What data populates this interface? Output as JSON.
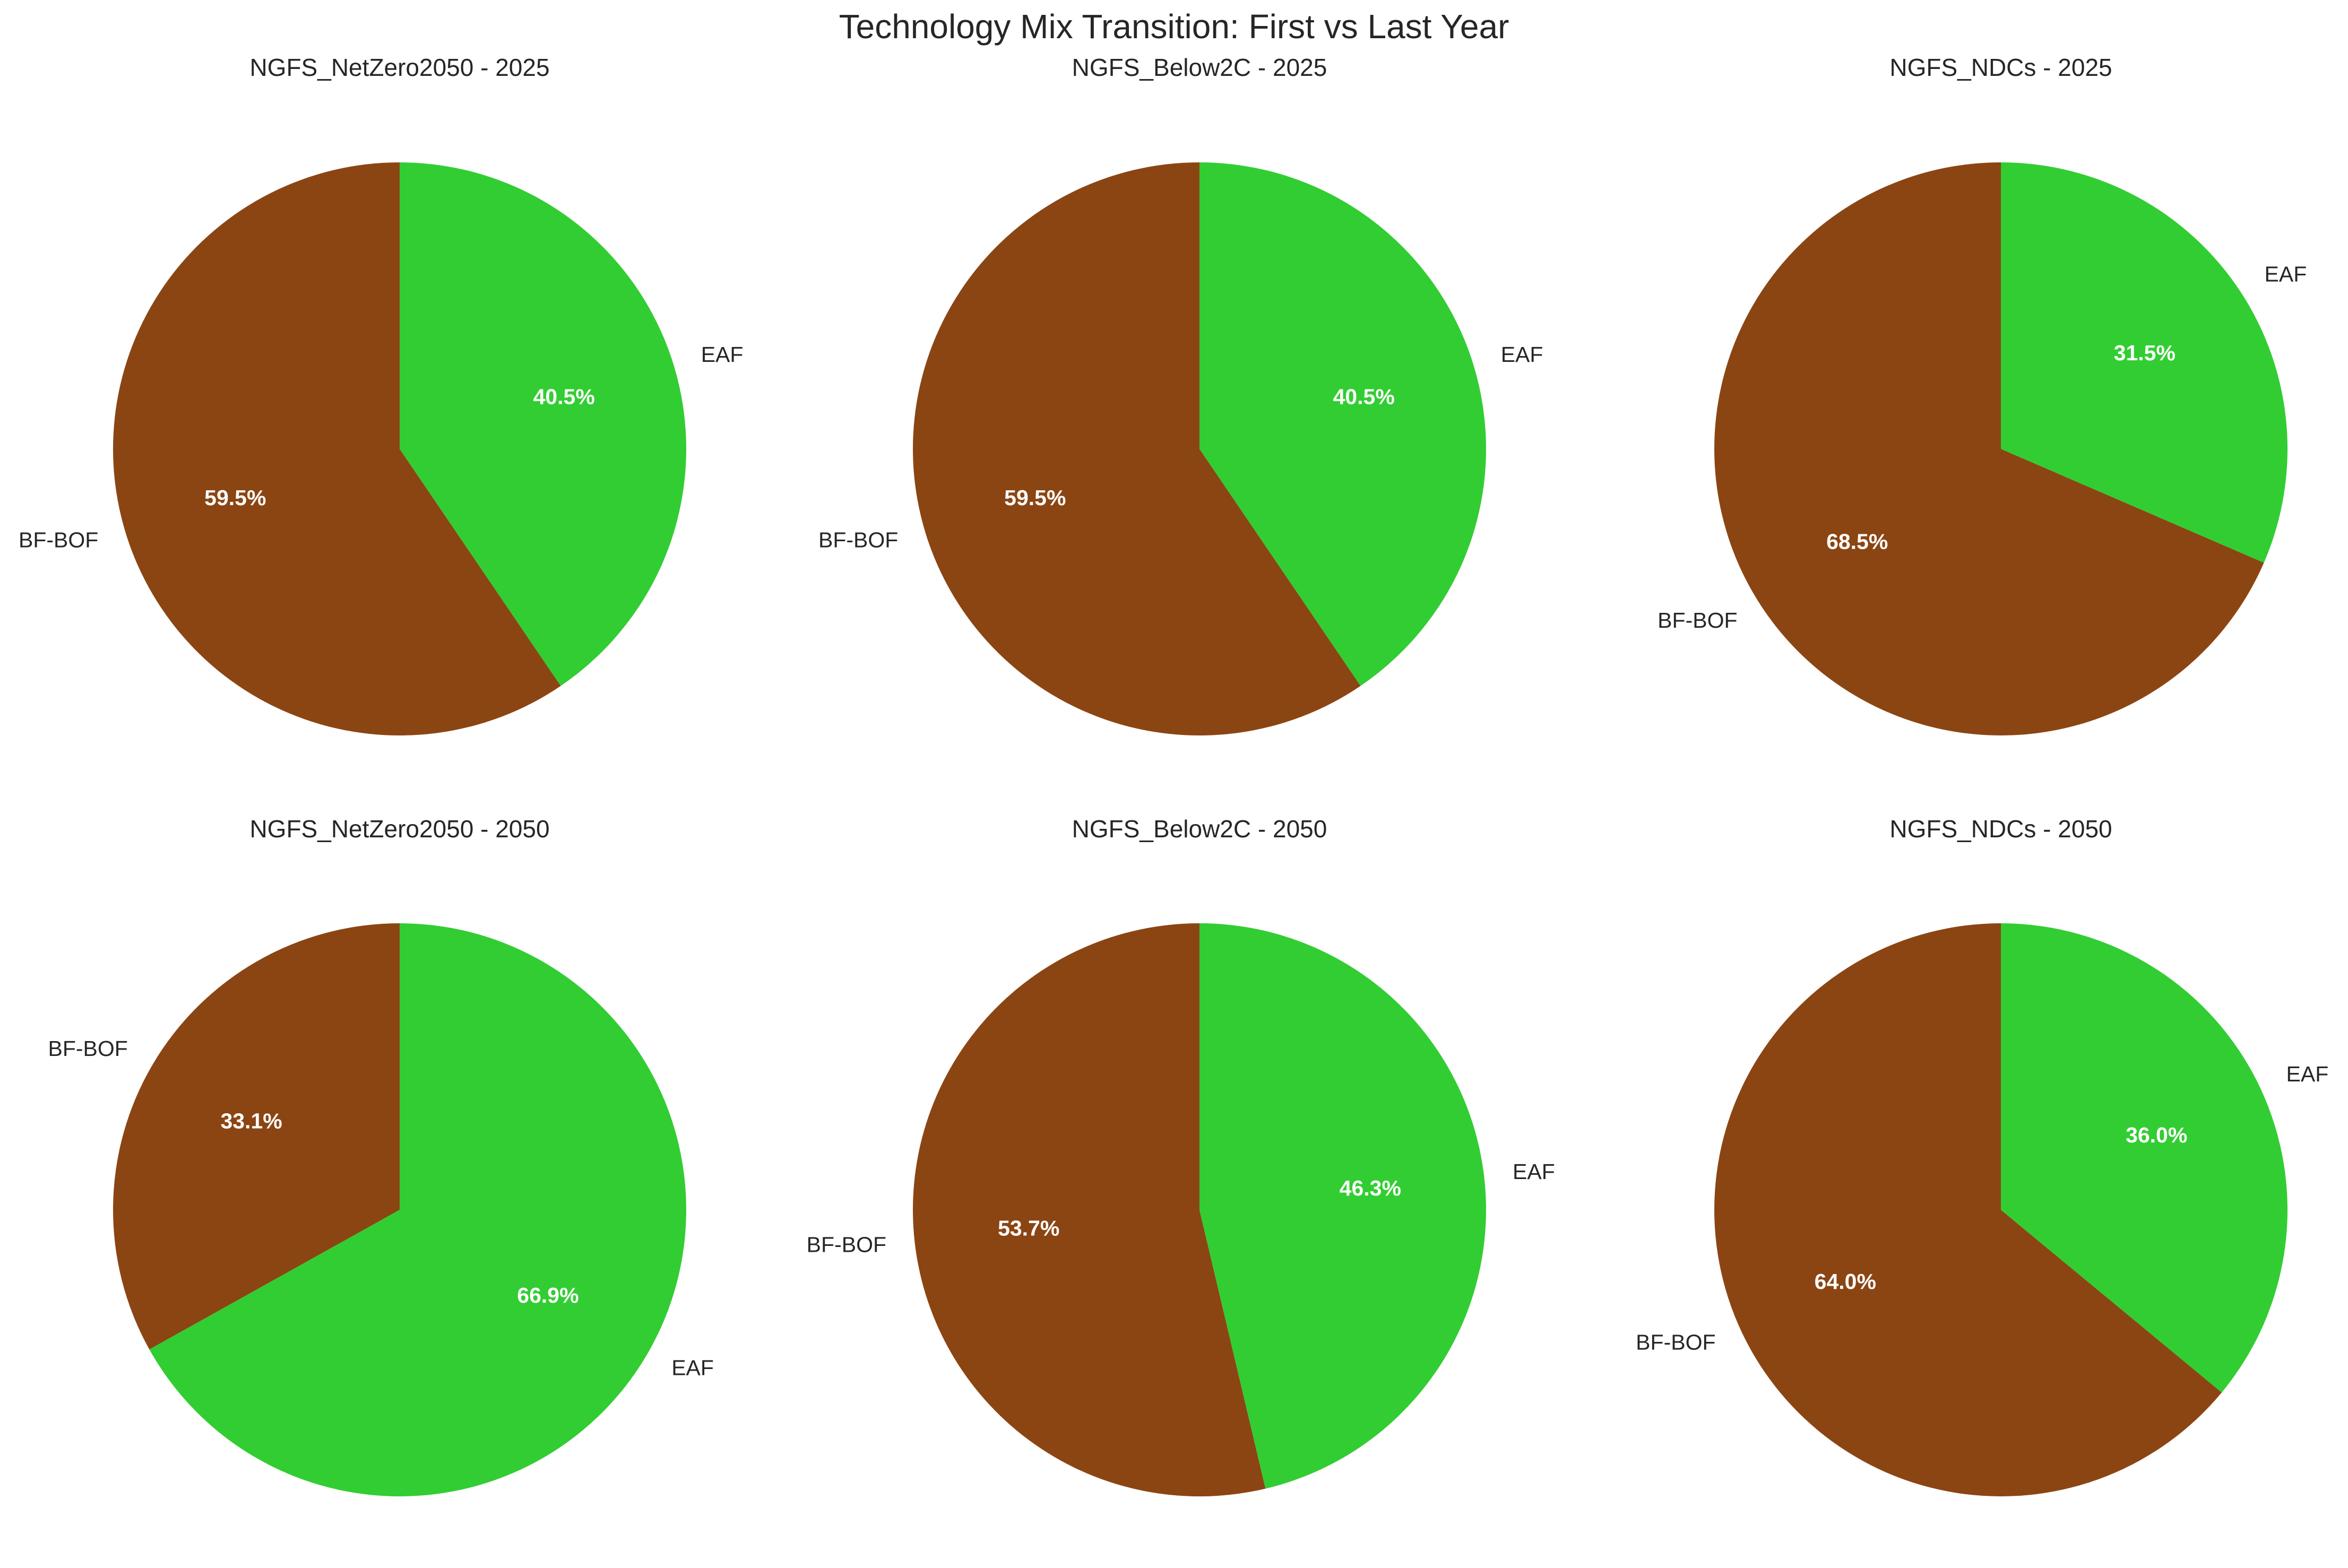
{
  "figure": {
    "title": "Technology Mix Transition: First vs Last Year"
  },
  "colors": {
    "BF-BOF": "#8B4513",
    "EAF": "#32CD32"
  },
  "chart_data": [
    {
      "type": "pie",
      "title": "NGFS_NetZero2050 - 2025",
      "labels": [
        "BF-BOF",
        "EAF"
      ],
      "values": [
        59.5,
        40.5
      ],
      "value_labels": [
        "59.5%",
        "40.5%"
      ]
    },
    {
      "type": "pie",
      "title": "NGFS_Below2C - 2025",
      "labels": [
        "BF-BOF",
        "EAF"
      ],
      "values": [
        59.5,
        40.5
      ],
      "value_labels": [
        "59.5%",
        "40.5%"
      ]
    },
    {
      "type": "pie",
      "title": "NGFS_NDCs - 2025",
      "labels": [
        "BF-BOF",
        "EAF"
      ],
      "values": [
        68.5,
        31.5
      ],
      "value_labels": [
        "68.5%",
        "31.5%"
      ]
    },
    {
      "type": "pie",
      "title": "NGFS_NetZero2050 - 2050",
      "labels": [
        "BF-BOF",
        "EAF"
      ],
      "values": [
        33.1,
        66.9
      ],
      "value_labels": [
        "33.1%",
        "66.9%"
      ]
    },
    {
      "type": "pie",
      "title": "NGFS_Below2C - 2050",
      "labels": [
        "BF-BOF",
        "EAF"
      ],
      "values": [
        53.7,
        46.3
      ],
      "value_labels": [
        "53.7%",
        "46.3%"
      ]
    },
    {
      "type": "pie",
      "title": "NGFS_NDCs - 2050",
      "labels": [
        "BF-BOF",
        "EAF"
      ],
      "values": [
        64.0,
        36.0
      ],
      "value_labels": [
        "64.0%",
        "36.0%"
      ]
    }
  ]
}
